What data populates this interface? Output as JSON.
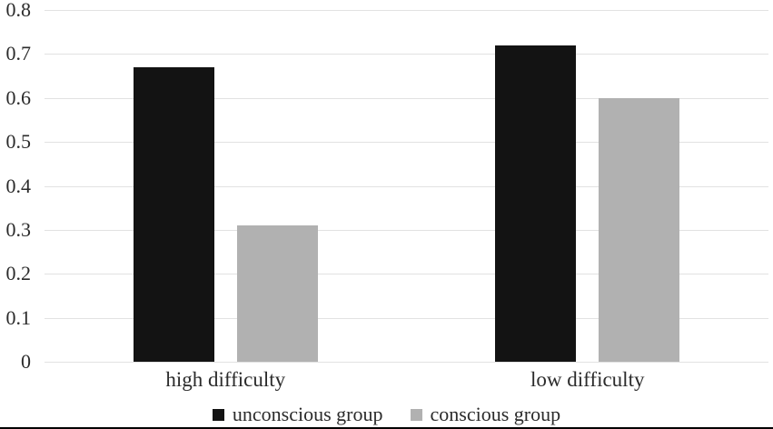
{
  "chart_data": {
    "type": "bar",
    "title": "",
    "xlabel": "",
    "ylabel": "",
    "categories": [
      "high difficulty",
      "low difficulty"
    ],
    "series": [
      {
        "name": "unconscious group",
        "color": "#131313",
        "values": [
          0.67,
          0.72
        ]
      },
      {
        "name": "conscious group",
        "color": "#b1b1b1",
        "values": [
          0.31,
          0.6
        ]
      }
    ],
    "ylim": [
      0,
      0.8
    ],
    "ytick_step": 0.1,
    "yticks": [
      "0",
      "0.1",
      "0.2",
      "0.3",
      "0.4",
      "0.5",
      "0.6",
      "0.7",
      "0.8"
    ],
    "grid": true,
    "gridline_color": "#e2e2e2",
    "legend_position": "bottom",
    "background_color": "#ffffff",
    "text_color": "#2b2b2b",
    "bottom_rule_color": "#000000"
  }
}
